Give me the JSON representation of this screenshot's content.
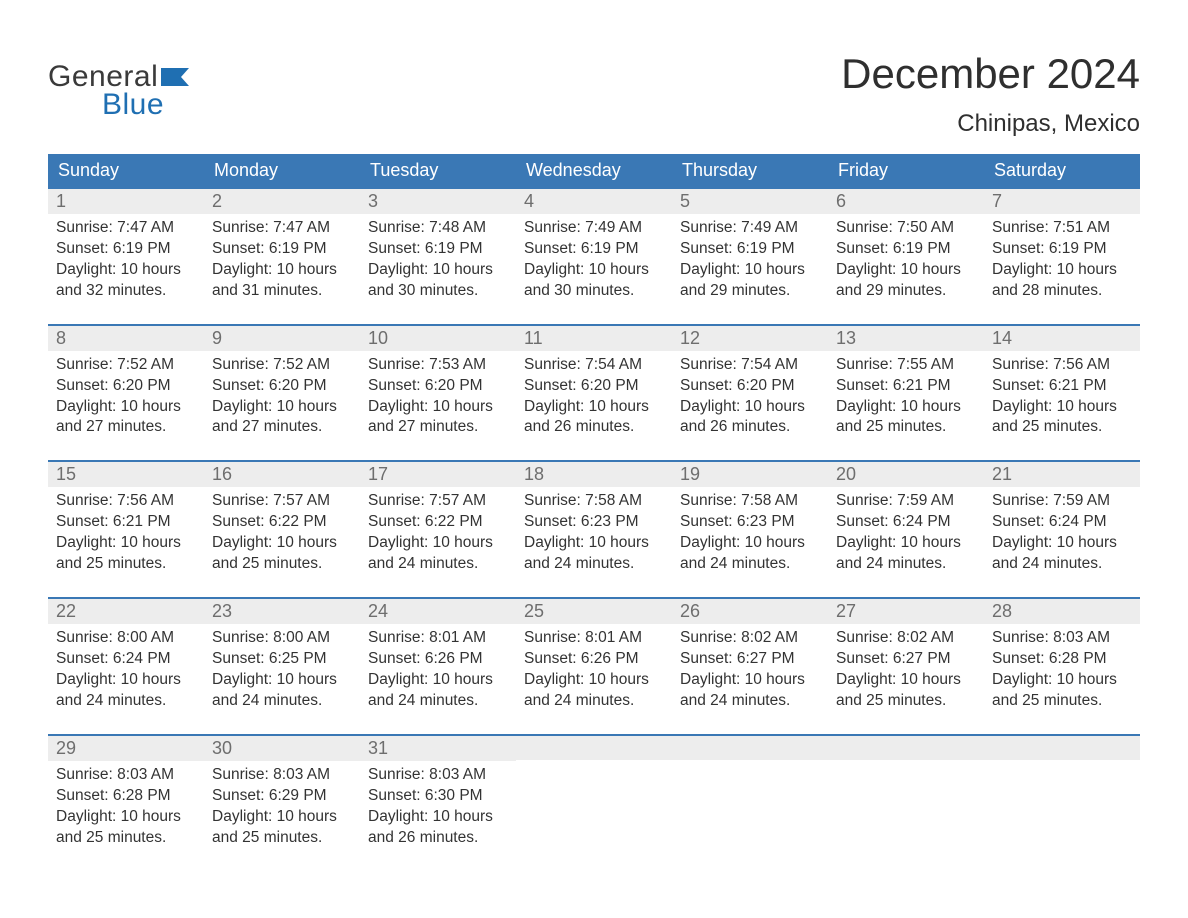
{
  "brand": {
    "text1": "General",
    "text2": "Blue",
    "flag_color": "#1f6fb2"
  },
  "title": "December 2024",
  "location": "Chinipas, Mexico",
  "colors": {
    "header_bg": "#3a78b5",
    "header_text": "#ffffff",
    "daynum_bg": "#ededed",
    "daynum_text": "#6e6e6e",
    "body_text": "#333333",
    "rule": "#3a78b5",
    "page_bg": "#ffffff"
  },
  "weekdays": [
    "Sunday",
    "Monday",
    "Tuesday",
    "Wednesday",
    "Thursday",
    "Friday",
    "Saturday"
  ],
  "weeks": [
    [
      {
        "n": "1",
        "sunrise": "7:47 AM",
        "sunset": "6:19 PM",
        "daylight": "10 hours and 32 minutes."
      },
      {
        "n": "2",
        "sunrise": "7:47 AM",
        "sunset": "6:19 PM",
        "daylight": "10 hours and 31 minutes."
      },
      {
        "n": "3",
        "sunrise": "7:48 AM",
        "sunset": "6:19 PM",
        "daylight": "10 hours and 30 minutes."
      },
      {
        "n": "4",
        "sunrise": "7:49 AM",
        "sunset": "6:19 PM",
        "daylight": "10 hours and 30 minutes."
      },
      {
        "n": "5",
        "sunrise": "7:49 AM",
        "sunset": "6:19 PM",
        "daylight": "10 hours and 29 minutes."
      },
      {
        "n": "6",
        "sunrise": "7:50 AM",
        "sunset": "6:19 PM",
        "daylight": "10 hours and 29 minutes."
      },
      {
        "n": "7",
        "sunrise": "7:51 AM",
        "sunset": "6:19 PM",
        "daylight": "10 hours and 28 minutes."
      }
    ],
    [
      {
        "n": "8",
        "sunrise": "7:52 AM",
        "sunset": "6:20 PM",
        "daylight": "10 hours and 27 minutes."
      },
      {
        "n": "9",
        "sunrise": "7:52 AM",
        "sunset": "6:20 PM",
        "daylight": "10 hours and 27 minutes."
      },
      {
        "n": "10",
        "sunrise": "7:53 AM",
        "sunset": "6:20 PM",
        "daylight": "10 hours and 27 minutes."
      },
      {
        "n": "11",
        "sunrise": "7:54 AM",
        "sunset": "6:20 PM",
        "daylight": "10 hours and 26 minutes."
      },
      {
        "n": "12",
        "sunrise": "7:54 AM",
        "sunset": "6:20 PM",
        "daylight": "10 hours and 26 minutes."
      },
      {
        "n": "13",
        "sunrise": "7:55 AM",
        "sunset": "6:21 PM",
        "daylight": "10 hours and 25 minutes."
      },
      {
        "n": "14",
        "sunrise": "7:56 AM",
        "sunset": "6:21 PM",
        "daylight": "10 hours and 25 minutes."
      }
    ],
    [
      {
        "n": "15",
        "sunrise": "7:56 AM",
        "sunset": "6:21 PM",
        "daylight": "10 hours and 25 minutes."
      },
      {
        "n": "16",
        "sunrise": "7:57 AM",
        "sunset": "6:22 PM",
        "daylight": "10 hours and 25 minutes."
      },
      {
        "n": "17",
        "sunrise": "7:57 AM",
        "sunset": "6:22 PM",
        "daylight": "10 hours and 24 minutes."
      },
      {
        "n": "18",
        "sunrise": "7:58 AM",
        "sunset": "6:23 PM",
        "daylight": "10 hours and 24 minutes."
      },
      {
        "n": "19",
        "sunrise": "7:58 AM",
        "sunset": "6:23 PM",
        "daylight": "10 hours and 24 minutes."
      },
      {
        "n": "20",
        "sunrise": "7:59 AM",
        "sunset": "6:24 PM",
        "daylight": "10 hours and 24 minutes."
      },
      {
        "n": "21",
        "sunrise": "7:59 AM",
        "sunset": "6:24 PM",
        "daylight": "10 hours and 24 minutes."
      }
    ],
    [
      {
        "n": "22",
        "sunrise": "8:00 AM",
        "sunset": "6:24 PM",
        "daylight": "10 hours and 24 minutes."
      },
      {
        "n": "23",
        "sunrise": "8:00 AM",
        "sunset": "6:25 PM",
        "daylight": "10 hours and 24 minutes."
      },
      {
        "n": "24",
        "sunrise": "8:01 AM",
        "sunset": "6:26 PM",
        "daylight": "10 hours and 24 minutes."
      },
      {
        "n": "25",
        "sunrise": "8:01 AM",
        "sunset": "6:26 PM",
        "daylight": "10 hours and 24 minutes."
      },
      {
        "n": "26",
        "sunrise": "8:02 AM",
        "sunset": "6:27 PM",
        "daylight": "10 hours and 24 minutes."
      },
      {
        "n": "27",
        "sunrise": "8:02 AM",
        "sunset": "6:27 PM",
        "daylight": "10 hours and 25 minutes."
      },
      {
        "n": "28",
        "sunrise": "8:03 AM",
        "sunset": "6:28 PM",
        "daylight": "10 hours and 25 minutes."
      }
    ],
    [
      {
        "n": "29",
        "sunrise": "8:03 AM",
        "sunset": "6:28 PM",
        "daylight": "10 hours and 25 minutes."
      },
      {
        "n": "30",
        "sunrise": "8:03 AM",
        "sunset": "6:29 PM",
        "daylight": "10 hours and 25 minutes."
      },
      {
        "n": "31",
        "sunrise": "8:03 AM",
        "sunset": "6:30 PM",
        "daylight": "10 hours and 26 minutes."
      },
      {
        "empty": true
      },
      {
        "empty": true
      },
      {
        "empty": true
      },
      {
        "empty": true
      }
    ]
  ],
  "labels": {
    "sunrise_prefix": "Sunrise: ",
    "sunset_prefix": "Sunset: ",
    "daylight_prefix": "Daylight: "
  }
}
